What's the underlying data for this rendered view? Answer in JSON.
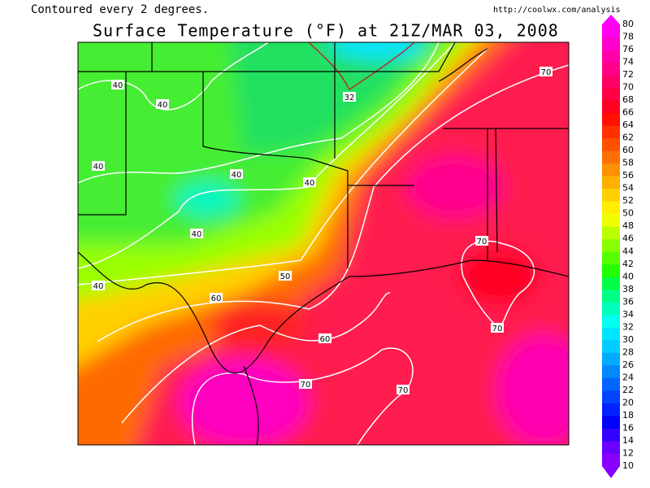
{
  "header": {
    "note": "Contoured every 2 degrees.",
    "url": "http://coolwx.com/analysis",
    "title": "Surface Temperature (°F) at 21Z/MAR 03, 2008"
  },
  "contour_labels": [
    "40",
    "40",
    "40",
    "40",
    "40",
    "40",
    "40",
    "50",
    "60",
    "60",
    "70",
    "70",
    "70",
    "70",
    "70",
    "32"
  ],
  "colorbar": {
    "levels": [
      10,
      12,
      14,
      16,
      18,
      20,
      22,
      24,
      26,
      28,
      30,
      32,
      34,
      36,
      38,
      40,
      42,
      44,
      46,
      48,
      50,
      52,
      54,
      56,
      58,
      60,
      62,
      64,
      66,
      68,
      70,
      72,
      74,
      76,
      78,
      80
    ],
    "colors": [
      "#8800ff",
      "#6a00ff",
      "#3300ff",
      "#0000ff",
      "#0022ff",
      "#0044ff",
      "#0066ff",
      "#0088ff",
      "#00aaff",
      "#00ccff",
      "#00e5ff",
      "#00ffee",
      "#00ffbb",
      "#00ff88",
      "#00ff44",
      "#22ff00",
      "#55ff00",
      "#88ff00",
      "#bbff00",
      "#eeff00",
      "#ffee00",
      "#ffd000",
      "#ffb000",
      "#ff9000",
      "#ff7000",
      "#ff5000",
      "#ff3000",
      "#ff1000",
      "#ff0020",
      "#ff0044",
      "#ff0066",
      "#ff0088",
      "#ff00aa",
      "#ff00cc",
      "#ff00ee"
    ]
  }
}
